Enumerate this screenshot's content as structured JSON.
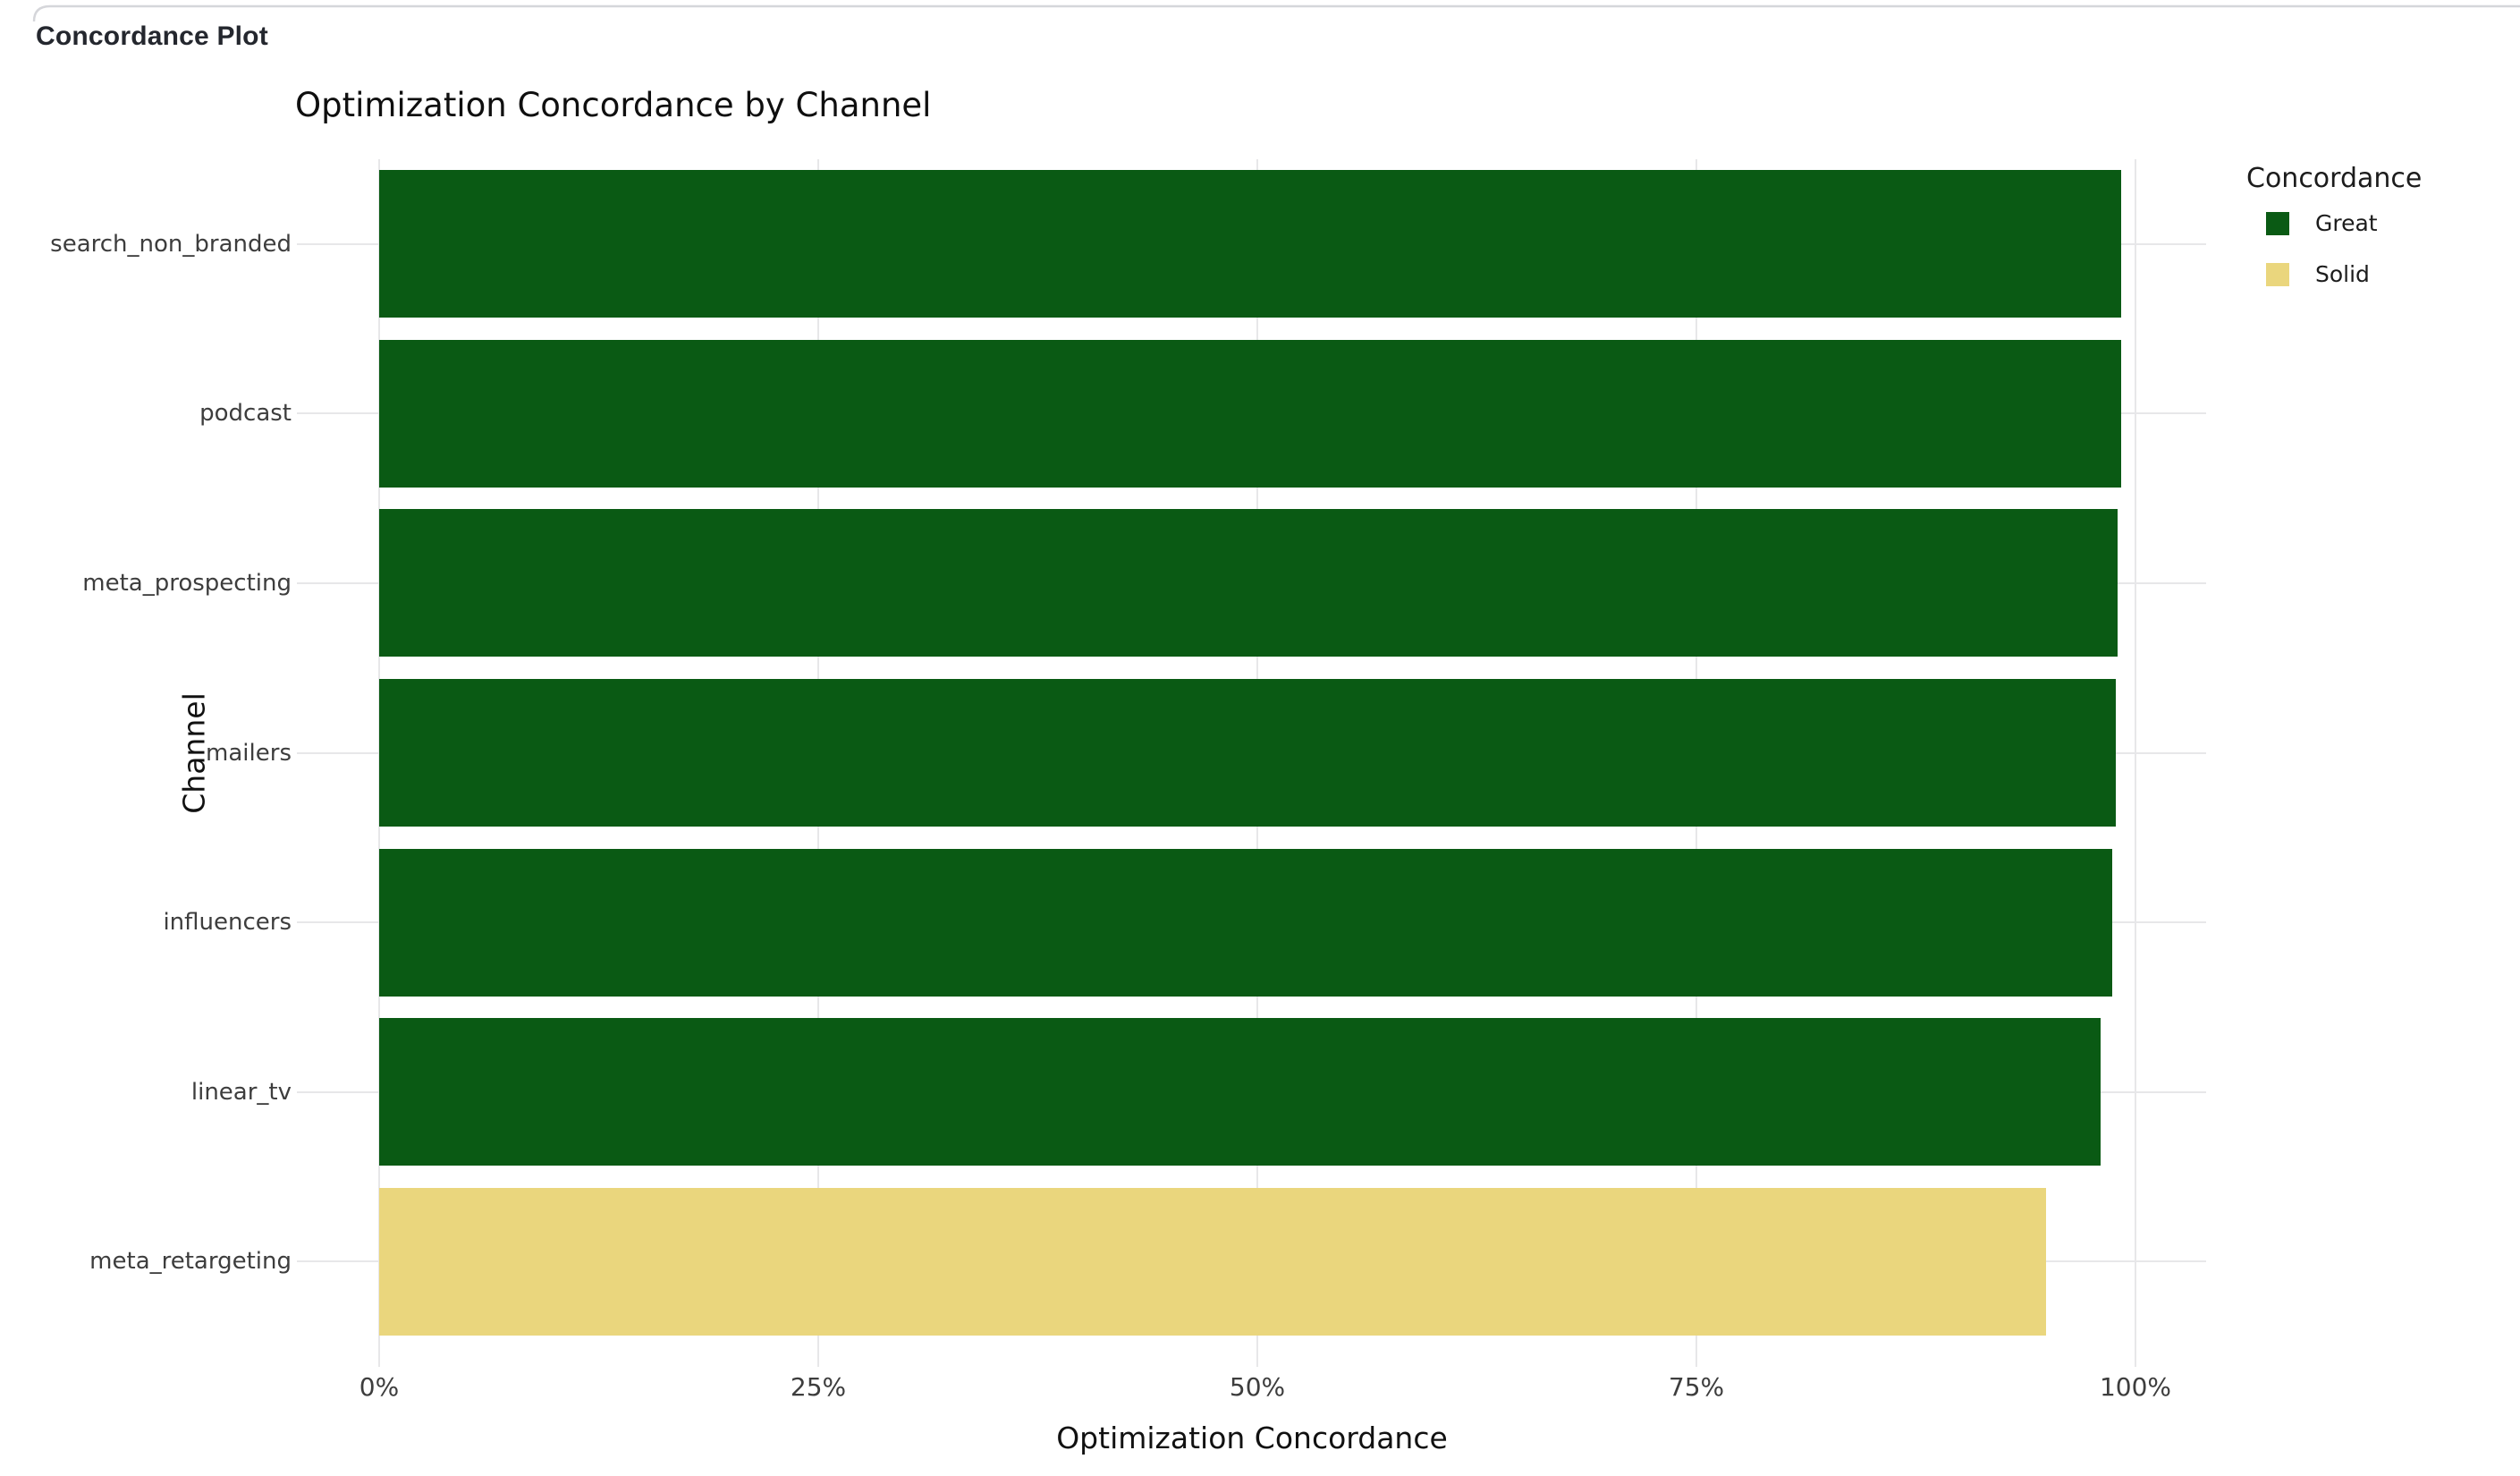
{
  "header": {
    "title": "Concordance Plot"
  },
  "chart": {
    "title": "Optimization Concordance by Channel",
    "x_axis": {
      "title": "Optimization Concordance",
      "tick_labels": [
        "0%",
        "25%",
        "50%",
        "75%",
        "100%"
      ],
      "tick_values": [
        0,
        0.25,
        0.5,
        0.75,
        1.0
      ]
    },
    "y_axis": {
      "title": "Channel"
    },
    "legend": {
      "title": "Concordance",
      "items": [
        {
          "label": "Great",
          "color": "#0a5a14"
        },
        {
          "label": "Solid",
          "color": "#ead67d"
        }
      ]
    }
  },
  "chart_data": {
    "type": "bar",
    "orientation": "horizontal",
    "title": "Optimization Concordance by Channel",
    "xlabel": "Optimization Concordance",
    "ylabel": "Channel",
    "xlim": [
      0,
      1
    ],
    "grid": true,
    "legend_position": "right",
    "categories": [
      "search_non_branded",
      "podcast",
      "meta_prospecting",
      "mailers",
      "influencers",
      "linear_tv",
      "meta_retargeting"
    ],
    "values": [
      0.992,
      0.992,
      0.99,
      0.989,
      0.987,
      0.98,
      0.949
    ],
    "concordance": [
      "Great",
      "Great",
      "Great",
      "Great",
      "Great",
      "Great",
      "Solid"
    ],
    "colors": {
      "Great": "#0a5a14",
      "Solid": "#ead67d"
    }
  }
}
